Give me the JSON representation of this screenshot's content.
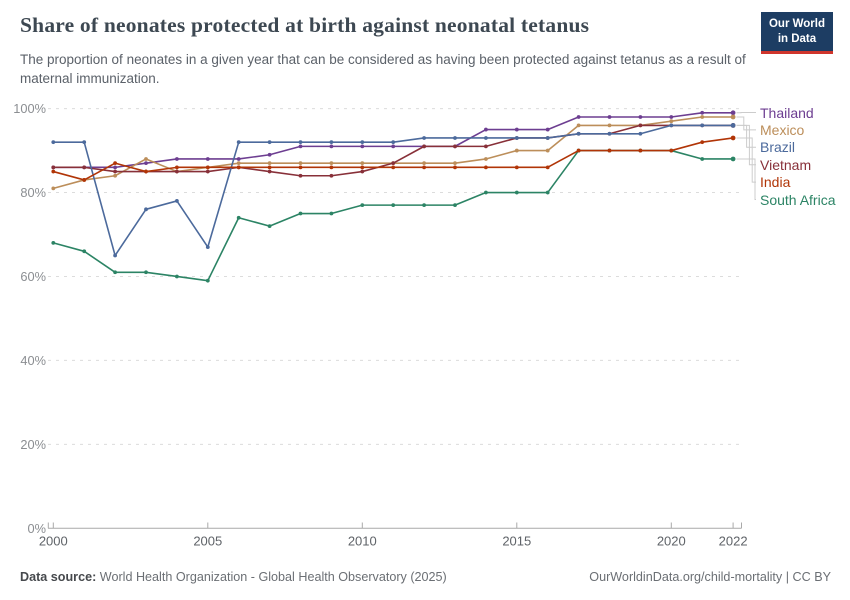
{
  "header": {
    "title": "Share of neonates protected at birth against neonatal tetanus",
    "subtitle": "The proportion of neonates in a given year that can be considered as having been protected against tetanus as a result of maternal immunization.",
    "logo": {
      "line1": "Our World",
      "line2": "in Data"
    }
  },
  "chart_data": {
    "type": "line",
    "x": [
      2000,
      2001,
      2002,
      2003,
      2004,
      2005,
      2006,
      2007,
      2008,
      2009,
      2010,
      2011,
      2012,
      2013,
      2014,
      2015,
      2016,
      2017,
      2018,
      2019,
      2020,
      2021,
      2022
    ],
    "series": [
      {
        "name": "Thailand",
        "color": "#6D3E91",
        "values": [
          86,
          86,
          86,
          87,
          88,
          88,
          88,
          89,
          91,
          91,
          91,
          91,
          91,
          91,
          95,
          95,
          95,
          98,
          98,
          98,
          98,
          99,
          99
        ]
      },
      {
        "name": "Mexico",
        "color": "#BC8E5A",
        "values": [
          81,
          83,
          84,
          88,
          85,
          86,
          87,
          87,
          87,
          87,
          87,
          87,
          87,
          87,
          88,
          90,
          90,
          96,
          96,
          96,
          97,
          98,
          98
        ]
      },
      {
        "name": "Brazil",
        "color": "#4C6A9C",
        "values": [
          92,
          92,
          65,
          76,
          78,
          67,
          92,
          92,
          92,
          92,
          92,
          92,
          93,
          93,
          93,
          93,
          93,
          94,
          94,
          94,
          96,
          96,
          96
        ]
      },
      {
        "name": "Vietnam",
        "color": "#883039",
        "values": [
          86,
          86,
          85,
          85,
          85,
          85,
          86,
          85,
          84,
          84,
          85,
          87,
          91,
          91,
          91,
          93,
          93,
          94,
          94,
          96,
          96,
          96,
          96
        ]
      },
      {
        "name": "India",
        "color": "#B13507",
        "values": [
          85,
          83,
          87,
          85,
          86,
          86,
          86,
          86,
          86,
          86,
          86,
          86,
          86,
          86,
          86,
          86,
          86,
          90,
          90,
          90,
          90,
          92,
          93
        ]
      },
      {
        "name": "South Africa",
        "color": "#2C8465",
        "values": [
          68,
          66,
          61,
          61,
          60,
          59,
          74,
          72,
          75,
          75,
          77,
          77,
          77,
          77,
          80,
          80,
          80,
          90,
          90,
          90,
          90,
          88,
          88
        ]
      }
    ],
    "ylim": [
      0,
      100
    ],
    "yticks": [
      0,
      20,
      40,
      60,
      80,
      100
    ],
    "ytick_suffix": "%",
    "xticks": [
      2000,
      2005,
      2010,
      2015,
      2020,
      2022
    ],
    "grid": "dashed-horizontal",
    "legend_position": "right"
  },
  "footer": {
    "source_label": "Data source:",
    "source_text": " World Health Organization - Global Health Observatory (2025)",
    "link_text": "OurWorldinData.org/child-mortality",
    "separator": " | ",
    "license_text": "CC BY"
  }
}
